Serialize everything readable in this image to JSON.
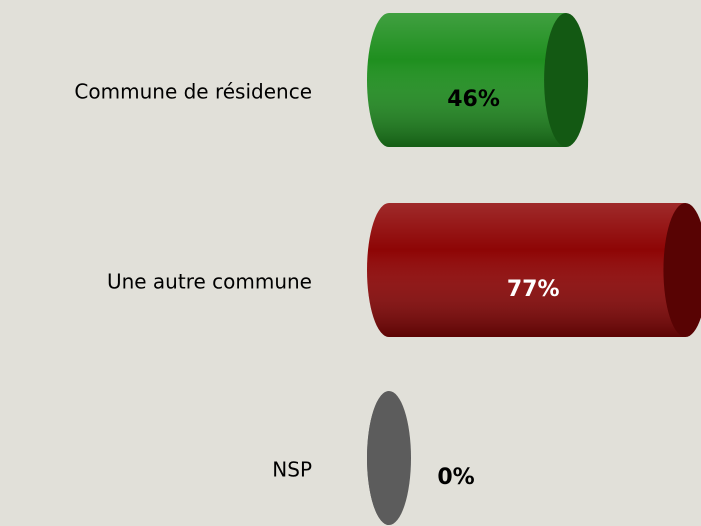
{
  "chart_data": {
    "type": "bar",
    "orientation": "horizontal",
    "categories": [
      "Commune de résidence",
      "Une autre commune",
      "NSP"
    ],
    "values": [
      46,
      77,
      0
    ],
    "value_labels": [
      "46%",
      "77%",
      "0%"
    ],
    "colors": [
      "#1f8f1f",
      "#8e0505",
      "#5c5c5c"
    ]
  }
}
